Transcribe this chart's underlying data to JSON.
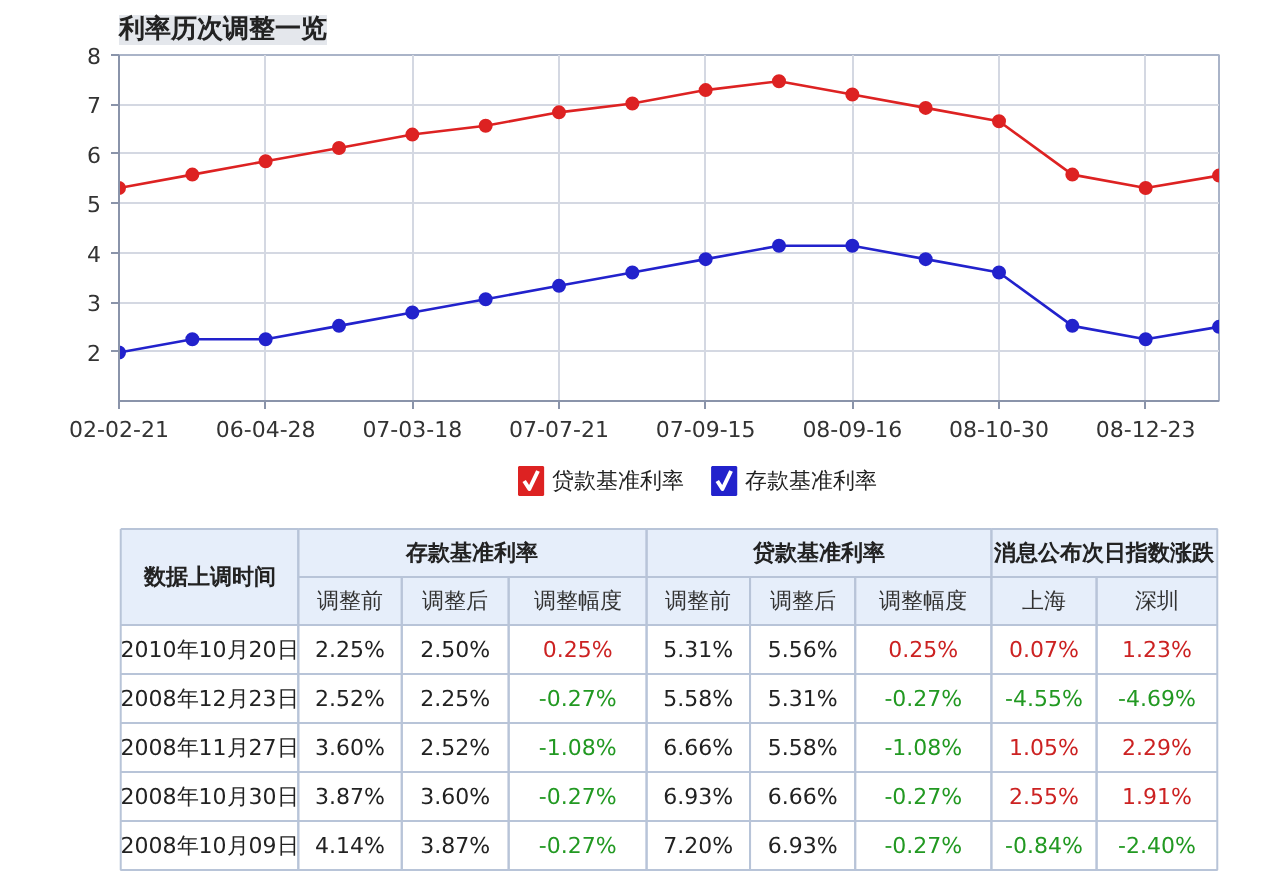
{
  "chart_data": [
    {
      "type": "line",
      "title": "利率历次调整一览",
      "categories": [
        "02-02-21",
        null,
        "06-04-28",
        null,
        "07-03-18",
        null,
        "07-07-21",
        null,
        "07-09-15",
        null,
        "08-09-16",
        null,
        "08-10-30",
        null,
        "08-12-23",
        null
      ],
      "series": [
        {
          "name": "贷款基准利率",
          "color": "#dd2222",
          "values": [
            5.31,
            5.58,
            5.85,
            6.12,
            6.39,
            6.57,
            6.84,
            7.02,
            7.29,
            7.47,
            7.2,
            6.93,
            6.66,
            5.58,
            5.31,
            5.56
          ]
        },
        {
          "name": "存款基准利率",
          "color": "#2222cc",
          "values": [
            1.98,
            2.25,
            2.25,
            2.52,
            2.79,
            3.06,
            3.33,
            3.6,
            3.87,
            4.14,
            4.14,
            3.87,
            3.6,
            2.52,
            2.25,
            2.5
          ]
        }
      ],
      "ylim": [
        1,
        8
      ],
      "yticks": [
        2,
        3,
        4,
        5,
        6,
        7,
        8
      ],
      "grid": true,
      "legend": "bottom",
      "marker": "circle",
      "line_style": "solid"
    },
    {
      "type": "other",
      "annotations": [
        "数据上调时间",
        "存款基准利率",
        "贷款基准利率",
        "消息公布次日指数涨跌",
        "调整前",
        "调整后",
        "调整幅度",
        "调整前",
        "调整后",
        "调整幅度",
        "上海",
        "深圳",
        "2010年10月20日",
        "2.25%",
        "2.50%",
        "0.25%",
        "5.31%",
        "5.56%",
        "0.25%",
        "0.07%",
        "1.23%",
        "2008年12月23日",
        "2.52%",
        "2.25%",
        "-0.27%",
        "5.58%",
        "5.31%",
        "-0.27%",
        "-4.55%",
        "-4.69%",
        "2008年11月27日",
        "3.60%",
        "2.52%",
        "-1.08%",
        "6.66%",
        "5.58%",
        "-1.08%",
        "1.05%",
        "2.29%",
        "2008年10月30日",
        "3.87%",
        "3.60%",
        "-0.27%",
        "6.93%",
        "6.66%",
        "-0.27%",
        "2.55%",
        "1.91%",
        "2008年10月09日",
        "4.14%",
        "3.87%",
        "-0.27%",
        "7.20%",
        "6.93%",
        "-0.27%",
        "-0.84%",
        "-2.40%"
      ],
      "colors": [
        "#222222",
        "#222222",
        "#222222",
        "#222222",
        "#333333",
        "#333333",
        "#333333",
        "#333333",
        "#333333",
        "#333333",
        "#333333",
        "#333333",
        "#222222",
        "#222222",
        "#222222",
        "#cc2222",
        "#222222",
        "#222222",
        "#cc2222",
        "#cc2222",
        "#cc2222",
        "#222222",
        "#222222",
        "#222222",
        "#229922",
        "#222222",
        "#222222",
        "#229922",
        "#229922",
        "#229922",
        "#222222",
        "#222222",
        "#222222",
        "#229922",
        "#222222",
        "#222222",
        "#229922",
        "#cc2222",
        "#cc2222",
        "#222222",
        "#222222",
        "#222222",
        "#229922",
        "#222222",
        "#222222",
        "#229922",
        "#cc2222",
        "#cc2222",
        "#222222",
        "#222222",
        "#222222",
        "#229922",
        "#222222",
        "#222222",
        "#229922",
        "#229922",
        "#229922"
      ]
    }
  ]
}
